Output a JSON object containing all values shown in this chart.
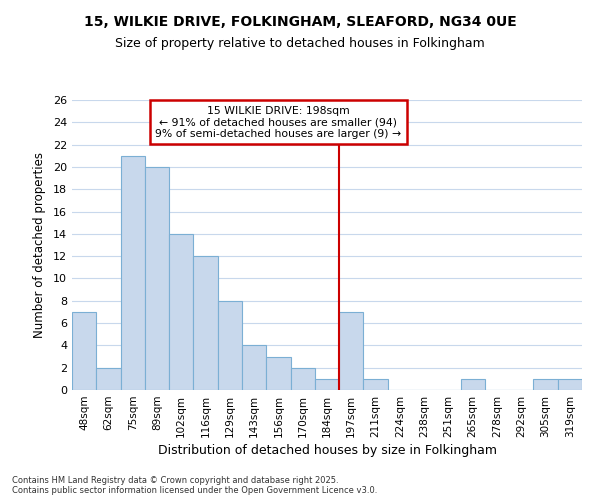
{
  "title_line1": "15, WILKIE DRIVE, FOLKINGHAM, SLEAFORD, NG34 0UE",
  "title_line2": "Size of property relative to detached houses in Folkingham",
  "xlabel": "Distribution of detached houses by size in Folkingham",
  "ylabel": "Number of detached properties",
  "categories": [
    "48sqm",
    "62sqm",
    "75sqm",
    "89sqm",
    "102sqm",
    "116sqm",
    "129sqm",
    "143sqm",
    "156sqm",
    "170sqm",
    "184sqm",
    "197sqm",
    "211sqm",
    "224sqm",
    "238sqm",
    "251sqm",
    "265sqm",
    "278sqm",
    "292sqm",
    "305sqm",
    "319sqm"
  ],
  "values": [
    7,
    2,
    21,
    20,
    14,
    12,
    8,
    4,
    3,
    2,
    1,
    7,
    1,
    0,
    0,
    0,
    1,
    0,
    0,
    1,
    1
  ],
  "bar_color": "#c8d8ec",
  "bar_edge_color": "#7bafd4",
  "marker_index": 11,
  "marker_line_color": "#cc0000",
  "annotation_line1": "15 WILKIE DRIVE: 198sqm",
  "annotation_line2": "← 91% of detached houses are smaller (94)",
  "annotation_line3": "9% of semi-detached houses are larger (9) →",
  "annotation_box_color": "#cc0000",
  "ylim": [
    0,
    26
  ],
  "yticks": [
    0,
    2,
    4,
    6,
    8,
    10,
    12,
    14,
    16,
    18,
    20,
    22,
    24,
    26
  ],
  "background_color": "#ffffff",
  "grid_color": "#c8d8ec",
  "footer_line1": "Contains HM Land Registry data © Crown copyright and database right 2025.",
  "footer_line2": "Contains public sector information licensed under the Open Government Licence v3.0."
}
